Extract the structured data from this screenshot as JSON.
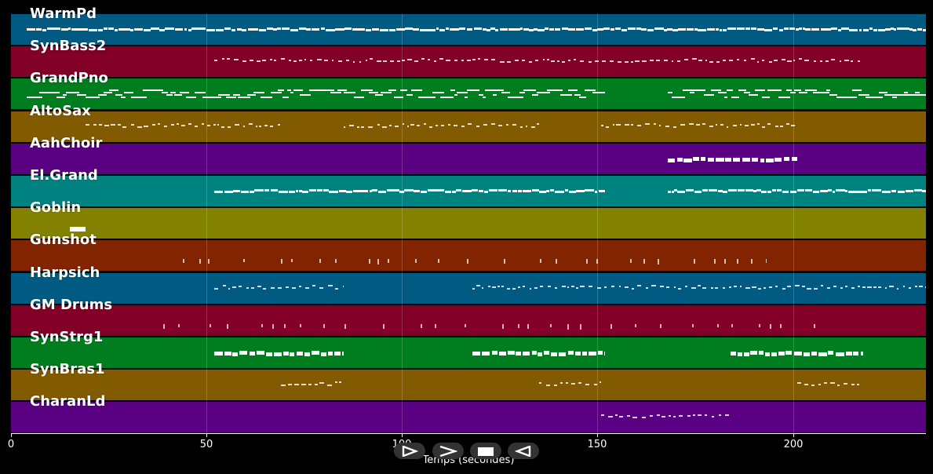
{
  "timeline": {
    "x_min": 0,
    "x_max": 234,
    "ticks": [
      {
        "value": 0,
        "label": "0"
      },
      {
        "value": 50,
        "label": "50"
      },
      {
        "value": 100,
        "label": "100"
      },
      {
        "value": 150,
        "label": "150"
      },
      {
        "value": 200,
        "label": "200"
      }
    ],
    "xlabel": "Temps (secondes)"
  },
  "tracks": [
    {
      "name": "WarmPd",
      "color": "#005a82",
      "density": "dense",
      "spans": [
        [
          4,
          234
        ]
      ]
    },
    {
      "name": "SynBass2",
      "color": "#820028",
      "density": "sparse",
      "spans": [
        [
          52,
          218
        ]
      ]
    },
    {
      "name": "GrandPno",
      "color": "#007d1e",
      "density": "thick",
      "spans": [
        [
          4,
          152
        ],
        [
          168,
          234
        ]
      ]
    },
    {
      "name": "AltoSax",
      "color": "#825a00",
      "density": "sparse",
      "spans": [
        [
          19,
          69
        ],
        [
          85,
          135
        ],
        [
          151,
          201
        ]
      ]
    },
    {
      "name": "AahChoir",
      "color": "#5a0082",
      "density": "blocks",
      "spans": [
        [
          168,
          201
        ]
      ]
    },
    {
      "name": "El.Grand",
      "color": "#008280",
      "density": "dense",
      "spans": [
        [
          52,
          152
        ],
        [
          168,
          234
        ]
      ]
    },
    {
      "name": "Goblin",
      "color": "#828200",
      "density": "single",
      "spans": [
        [
          15,
          19
        ]
      ]
    },
    {
      "name": "Gunshot",
      "color": "#822400",
      "density": "points",
      "spans": [
        [
          44,
          193
        ]
      ]
    },
    {
      "name": "Harpsich",
      "color": "#005a82",
      "density": "sparse",
      "spans": [
        [
          52,
          85
        ],
        [
          118,
          234
        ]
      ]
    },
    {
      "name": "GM Drums",
      "color": "#820028",
      "density": "points",
      "spans": [
        [
          39,
          206
        ]
      ]
    },
    {
      "name": "SynStrg1",
      "color": "#007d1e",
      "density": "blocks",
      "spans": [
        [
          52,
          85
        ],
        [
          118,
          152
        ],
        [
          184,
          218
        ]
      ]
    },
    {
      "name": "SynBras1",
      "color": "#825a00",
      "density": "sparse",
      "spans": [
        [
          69,
          85
        ],
        [
          135,
          151
        ],
        [
          201,
          217
        ]
      ]
    },
    {
      "name": "CharanLd",
      "color": "#5a0082",
      "density": "sparse",
      "spans": [
        [
          151,
          184
        ]
      ]
    }
  ],
  "controls": [
    {
      "name": "play-button",
      "icon": "play-icon"
    },
    {
      "name": "forward-button",
      "icon": "forward-icon"
    },
    {
      "name": "stop-button",
      "icon": "stop-icon"
    },
    {
      "name": "rewind-button",
      "icon": "rewind-icon"
    }
  ]
}
